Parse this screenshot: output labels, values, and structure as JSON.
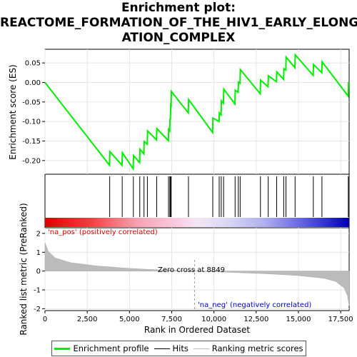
{
  "title_lines": [
    "Enrichment plot:",
    "REACTOME_FORMATION_OF_THE_HIV1_EARLY_ELONG",
    "ATION_COMPLEX"
  ],
  "chart_data": {
    "type": "line",
    "x_range": [
      0,
      18000
    ],
    "x_ticks": [
      0,
      2500,
      5000,
      7500,
      10000,
      12500,
      15000,
      17500
    ],
    "x_tick_labels": [
      "0",
      "2,500",
      "5,000",
      "7,500",
      "10,000",
      "12,500",
      "15,000",
      "17,500"
    ],
    "xlabel": "Rank in Ordered Dataset",
    "top_panel": {
      "ylabel": "Enrichment score (ES)",
      "ylim": [
        -0.235,
        0.085
      ],
      "y_ticks": [
        -0.2,
        -0.15,
        -0.1,
        -0.05,
        0.0,
        0.05
      ],
      "y_tick_labels": [
        "-0.20",
        "-0.15",
        "-0.10",
        "-0.05",
        "0.00",
        "0.05"
      ],
      "grid": true,
      "series_color": "#00ee00",
      "points": [
        [
          0,
          0.0
        ],
        [
          3820,
          -0.212
        ],
        [
          3840,
          -0.177
        ],
        [
          4560,
          -0.212
        ],
        [
          4580,
          -0.18
        ],
        [
          5220,
          -0.221
        ],
        [
          5240,
          -0.187
        ],
        [
          5600,
          -0.205
        ],
        [
          5620,
          -0.171
        ],
        [
          5850,
          -0.183
        ],
        [
          5870,
          -0.151
        ],
        [
          6050,
          -0.158
        ],
        [
          6070,
          -0.124
        ],
        [
          6600,
          -0.147
        ],
        [
          6620,
          -0.118
        ],
        [
          7300,
          -0.149
        ],
        [
          7320,
          -0.12
        ],
        [
          7380,
          -0.124
        ],
        [
          7400,
          -0.093
        ],
        [
          7420,
          -0.095
        ],
        [
          7440,
          -0.058
        ],
        [
          7460,
          -0.059
        ],
        [
          7480,
          -0.023
        ],
        [
          8480,
          -0.078
        ],
        [
          8500,
          -0.044
        ],
        [
          9920,
          -0.128
        ],
        [
          9940,
          -0.091
        ],
        [
          10300,
          -0.1
        ],
        [
          10320,
          -0.078
        ],
        [
          10420,
          -0.083
        ],
        [
          10440,
          -0.047
        ],
        [
          10560,
          -0.053
        ],
        [
          10580,
          -0.017
        ],
        [
          11240,
          -0.055
        ],
        [
          11260,
          -0.02
        ],
        [
          11430,
          -0.025
        ],
        [
          11450,
          0.001
        ],
        [
          11540,
          -0.002
        ],
        [
          11560,
          0.033
        ],
        [
          12740,
          -0.029
        ],
        [
          12760,
          0.006
        ],
        [
          13200,
          -0.011
        ],
        [
          13220,
          0.017
        ],
        [
          13700,
          0.002
        ],
        [
          13720,
          0.027
        ],
        [
          14120,
          0.008
        ],
        [
          14140,
          0.035
        ],
        [
          14250,
          0.032
        ],
        [
          14270,
          0.065
        ],
        [
          14790,
          0.038
        ],
        [
          14810,
          0.071
        ],
        [
          15870,
          0.018
        ],
        [
          15890,
          0.046
        ],
        [
          16380,
          0.025
        ],
        [
          16400,
          0.053
        ],
        [
          17940,
          -0.035
        ],
        [
          17960,
          0.001
        ]
      ]
    },
    "hits": [
      3830,
      4570,
      5230,
      5610,
      5860,
      6060,
      6610,
      7310,
      7390,
      7430,
      7470,
      8490,
      9930,
      10310,
      10430,
      10570,
      11250,
      11440,
      11550,
      12750,
      13210,
      13710,
      14130,
      14260,
      14800,
      15880,
      16390,
      17950
    ],
    "bottom_panel": {
      "ylabel": "Ranked list metric (PreRanked)",
      "ylim": [
        -2.1,
        2.3
      ],
      "y_ticks": [
        -2,
        -1,
        0,
        1,
        2
      ],
      "y_tick_labels": [
        "-2",
        "-1",
        "0",
        "1",
        "2"
      ],
      "metric_curve": [
        [
          0,
          1.5
        ],
        [
          200,
          1.05
        ],
        [
          600,
          0.7
        ],
        [
          1500,
          0.45
        ],
        [
          3000,
          0.28
        ],
        [
          5000,
          0.14
        ],
        [
          7000,
          0.05
        ],
        [
          8849,
          0.0
        ],
        [
          11000,
          -0.07
        ],
        [
          13000,
          -0.14
        ],
        [
          15000,
          -0.24
        ],
        [
          16500,
          -0.38
        ],
        [
          17200,
          -0.55
        ],
        [
          17700,
          -0.9
        ],
        [
          17900,
          -1.3
        ],
        [
          18000,
          -1.85
        ]
      ],
      "zero_cross": 8849,
      "zero_cross_label": "Zero cross at 8849",
      "pos_label": "'na_pos' (positively correlated)",
      "neg_label": "'na_neg' (negatively correlated)",
      "pos_color": "#dd0000",
      "neg_color": "#0000cc"
    },
    "legend": {
      "placement": "bottom",
      "entries": [
        {
          "label": "Enrichment profile",
          "color": "#00ee00"
        },
        {
          "label": "Hits",
          "color": "#000000"
        },
        {
          "label": "Ranking metric scores",
          "color": "#bbbbbb"
        }
      ]
    }
  }
}
